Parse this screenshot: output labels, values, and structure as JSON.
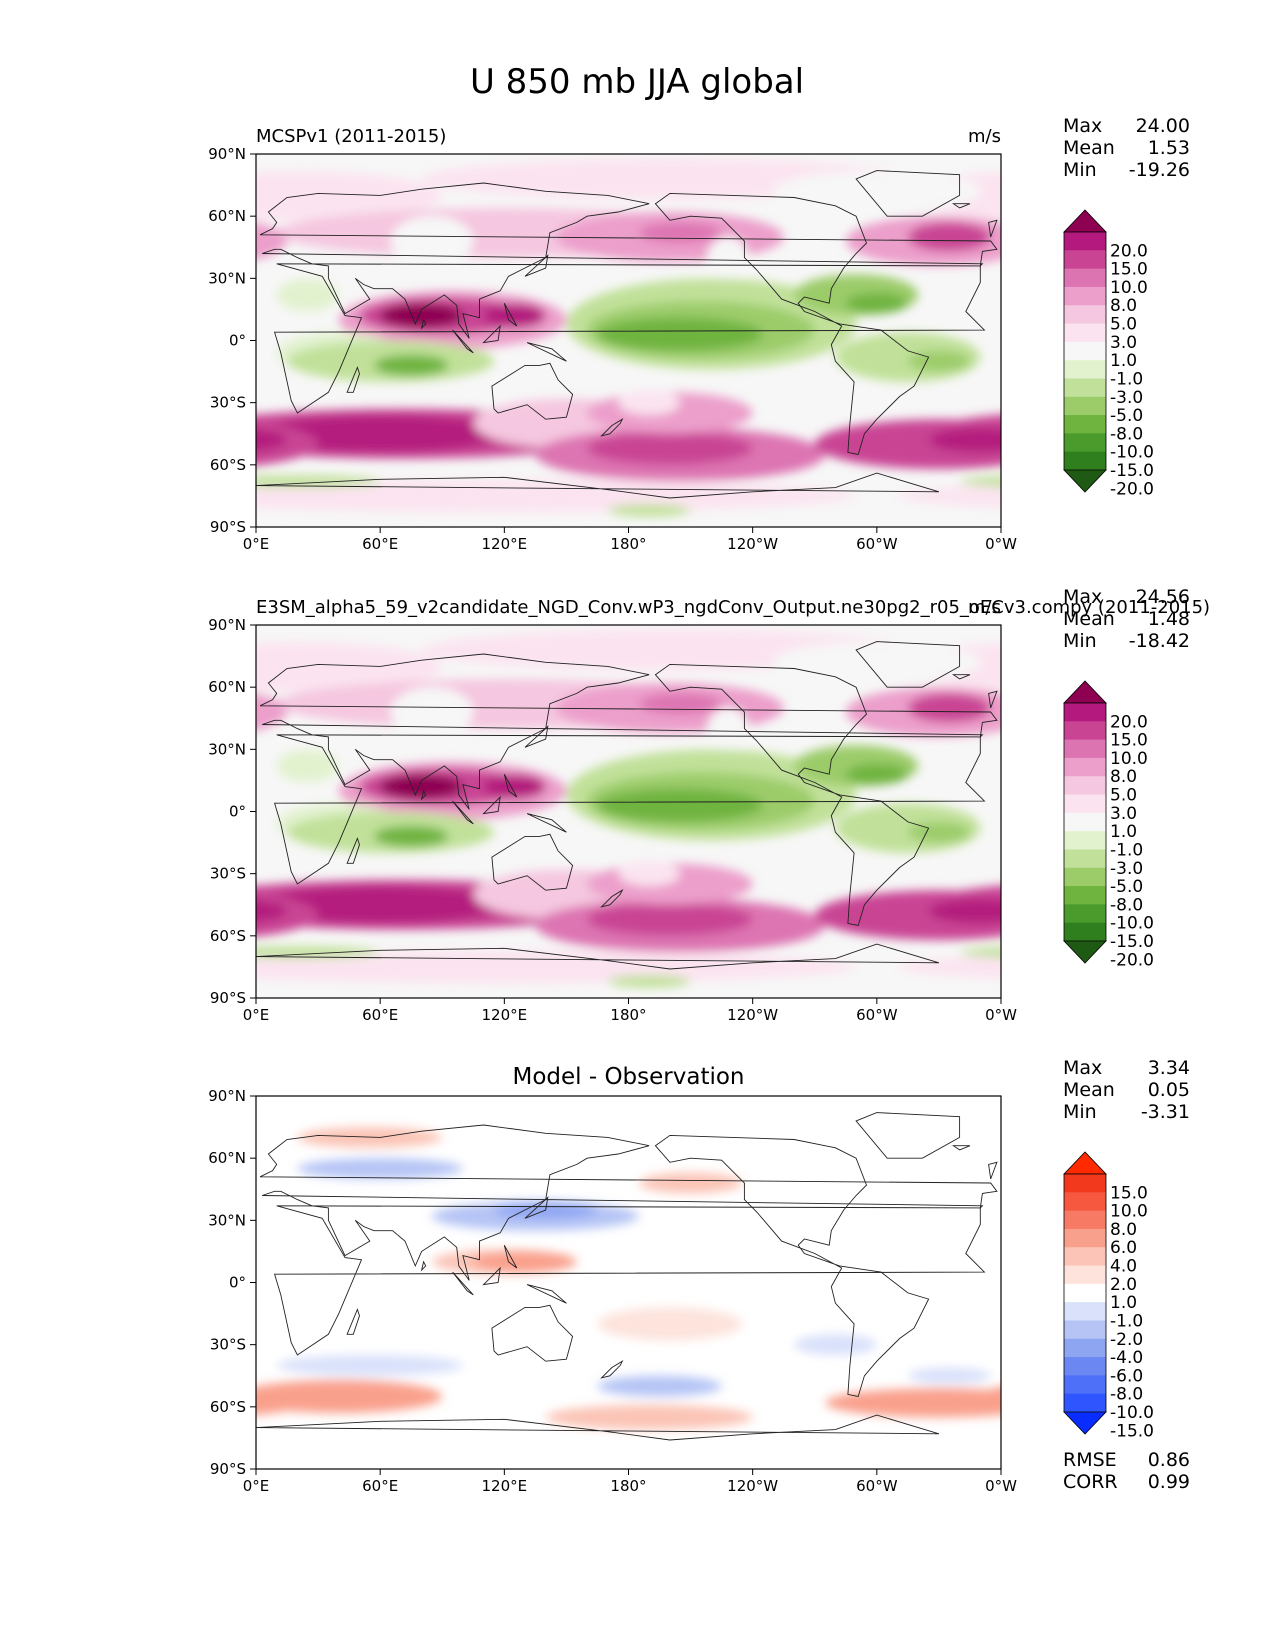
{
  "figure": {
    "title": "U 850 mb JJA global",
    "stat_labels": {
      "max": "Max",
      "mean": "Mean",
      "min": "Min",
      "rmse": "RMSE",
      "corr": "CORR"
    }
  },
  "axes_ticks": {
    "lon": [
      "0°E",
      "60°E",
      "120°E",
      "180°",
      "120°W",
      "60°W",
      "0°W"
    ],
    "lat": [
      "90°N",
      "60°N",
      "30°N",
      "0°",
      "30°S",
      "60°S",
      "90°S"
    ]
  },
  "colors": {
    "pink_green": [
      "#1e5a14",
      "#2f7f1f",
      "#4b9a2c",
      "#6fb43f",
      "#9ccc6a",
      "#c1e19a",
      "#e2f2cf",
      "#f7f7f7",
      "#fbe4f0",
      "#f5c7e0",
      "#ec9fcb",
      "#dd74b2",
      "#c94594",
      "#b41a7e",
      "#8e0152"
    ],
    "blue_red": [
      "#0a2dff",
      "#2f55ff",
      "#4e6ff7",
      "#6b88f2",
      "#8ea5f2",
      "#b5c4f5",
      "#d9e1fb",
      "#ffffff",
      "#fde3dc",
      "#fbc4b6",
      "#f9a08c",
      "#f77b64",
      "#f5583f",
      "#f2381d",
      "#ff2a00"
    ]
  },
  "chart_data": [
    {
      "type": "heatmap",
      "panel": "test",
      "left_title": "MCSPv1 (2011-2015)",
      "right_title": "m/s",
      "units": "m/s",
      "stats": {
        "max": "24.00",
        "mean": "1.53",
        "min": "-19.26"
      },
      "colorbar_levels": [
        "20.0",
        "15.0",
        "10.0",
        "8.0",
        "5.0",
        "3.0",
        "1.0",
        "-1.0",
        "-3.0",
        "-5.0",
        "-8.0",
        "-10.0",
        "-15.0",
        "-20.0"
      ],
      "colormap": "pink_green",
      "xlim": [
        0,
        360
      ],
      "ylim": [
        -90,
        90
      ]
    },
    {
      "type": "heatmap",
      "panel": "reference",
      "left_title": "E3SM_alpha5_59_v2candidate_NGD_Conv.wP3_ngdConv_Output.ne30pg2_r05_oECv3.compy (2011-2015)",
      "right_title": "m/s",
      "units": "m/s",
      "stats": {
        "max": "24.56",
        "mean": "1.48",
        "min": "-18.42"
      },
      "colorbar_levels": [
        "20.0",
        "15.0",
        "10.0",
        "8.0",
        "5.0",
        "3.0",
        "1.0",
        "-1.0",
        "-3.0",
        "-5.0",
        "-8.0",
        "-10.0",
        "-15.0",
        "-20.0"
      ],
      "colormap": "pink_green",
      "xlim": [
        0,
        360
      ],
      "ylim": [
        -90,
        90
      ]
    },
    {
      "type": "heatmap",
      "panel": "difference",
      "center_title": "Model - Observation",
      "stats": {
        "max": "3.34",
        "mean": "0.05",
        "min": "-3.31",
        "rmse": "0.86",
        "corr": "0.99"
      },
      "colorbar_levels": [
        "15.0",
        "10.0",
        "8.0",
        "6.0",
        "4.0",
        "2.0",
        "1.0",
        "-1.0",
        "-2.0",
        "-4.0",
        "-6.0",
        "-8.0",
        "-10.0",
        "-15.0"
      ],
      "colormap": "blue_red",
      "xlim": [
        0,
        360
      ],
      "ylim": [
        -90,
        90
      ]
    }
  ]
}
